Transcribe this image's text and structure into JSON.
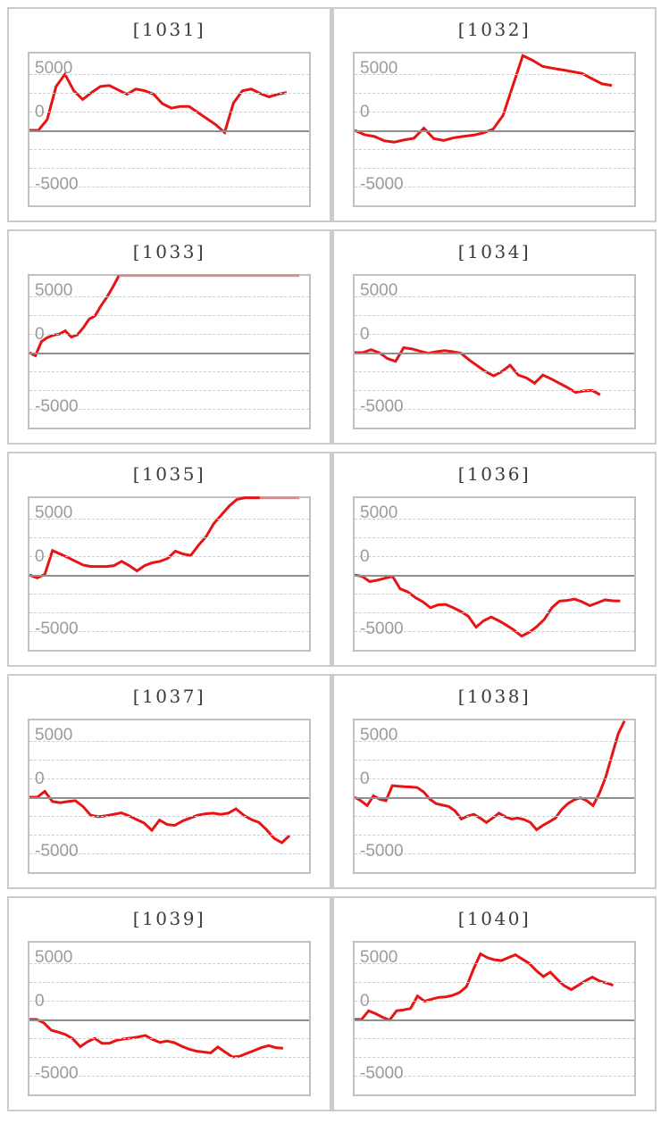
{
  "page": {
    "background": "#ffffff",
    "rows": 5,
    "cols": 2
  },
  "styles": {
    "line_color": "#e81414",
    "cap_color": "#d68f8f",
    "grid_color": "#cecece",
    "zero_line_color": "#8f8f8f",
    "plot_border_color": "#c0c0c0",
    "panel_border_color": "#cbcbcb",
    "title_color": "#3a3a3a",
    "tick_label_color": "#9b9b9b"
  },
  "axis": {
    "y_top": 10260,
    "y_bottom": -10010,
    "grid_values": [
      7500,
      5000,
      2500,
      0,
      -2500,
      -5000,
      -7500
    ],
    "zero_value": 0,
    "tick_labels": [
      "5000",
      "0",
      "-5000"
    ],
    "tick_label_positions_pct": [
      10.1,
      39.0,
      86.4
    ],
    "grid_step": 2500
  },
  "chart_data": [
    {
      "type": "line",
      "title": "[1031]",
      "x_span": 0.92,
      "ylim": [
        -10010,
        10260
      ],
      "values": [
        0,
        0,
        1450,
        5870,
        7500,
        5290,
        4130,
        5060,
        5870,
        5990,
        5410,
        4830,
        5520,
        5290,
        4830,
        3550,
        2970,
        3200,
        3200,
        2380,
        1570,
        760,
        -290,
        3660,
        5290,
        5520,
        4940,
        4480,
        4830,
        5060
      ]
    },
    {
      "type": "line",
      "title": "[1032]",
      "x_span": 0.92,
      "ylim": [
        -10010,
        10260
      ],
      "values": [
        0,
        -580,
        -810,
        -1390,
        -1570,
        -1280,
        -1050,
        300,
        -1100,
        -1350,
        -1000,
        -800,
        -640,
        -350,
        170,
        1990,
        6000,
        9980,
        9350,
        8550,
        8300,
        8080,
        7850,
        7600,
        6900,
        6220,
        6000
      ]
    },
    {
      "type": "line",
      "title": "[1033]",
      "x_span": 0.32,
      "ylim": [
        -10010,
        10260
      ],
      "cap": {
        "from": 0.32,
        "to": 0.965,
        "value": 10300
      },
      "values": [
        0,
        -400,
        1480,
        2020,
        2330,
        2490,
        2910,
        2090,
        2370,
        3300,
        4470,
        4930,
        6280,
        7440,
        8800,
        10300
      ]
    },
    {
      "type": "line",
      "title": "[1034]",
      "x_span": 0.878,
      "ylim": [
        -10010,
        10260
      ],
      "values": [
        0,
        0,
        390,
        0,
        -780,
        -1160,
        660,
        500,
        190,
        -80,
        120,
        270,
        120,
        -80,
        -970,
        -1750,
        -2520,
        -3100,
        -2520,
        -1670,
        -2990,
        -3370,
        -4070,
        -2990,
        -3490,
        -4070,
        -4650,
        -5310,
        -5120,
        -5040,
        -5620
      ]
    },
    {
      "type": "line",
      "title": "[1035]",
      "x_span": 0.824,
      "ylim": [
        -10010,
        10260
      ],
      "cap": {
        "from": 0.824,
        "to": 0.965,
        "value": 10300
      },
      "values": [
        0,
        -390,
        80,
        3260,
        2790,
        2330,
        1820,
        1320,
        1120,
        1120,
        1120,
        1240,
        1820,
        1240,
        540,
        1240,
        1630,
        1820,
        2210,
        3180,
        2790,
        2600,
        3950,
        5120,
        6860,
        8020,
        9190,
        10080,
        10300,
        10300,
        10300
      ]
    },
    {
      "type": "line",
      "title": "[1036]",
      "x_span": 0.95,
      "ylim": [
        -10010,
        10260
      ],
      "values": [
        0,
        -190,
        -890,
        -700,
        -430,
        -190,
        -1860,
        -2250,
        -3020,
        -3600,
        -4380,
        -3990,
        -3950,
        -4380,
        -4880,
        -5540,
        -6980,
        -6120,
        -5620,
        -6120,
        -6710,
        -7360,
        -8180,
        -7670,
        -6900,
        -5930,
        -4380,
        -3490,
        -3410,
        -3220,
        -3600,
        -4110,
        -3720,
        -3330,
        -3450,
        -3490
      ]
    },
    {
      "type": "line",
      "title": "[1037]",
      "x_span": 0.93,
      "ylim": [
        -10010,
        10260
      ],
      "values": [
        0,
        0,
        775,
        -580,
        -740,
        -580,
        -465,
        -1240,
        -2400,
        -2600,
        -2480,
        -2290,
        -2090,
        -2480,
        -2980,
        -3450,
        -4420,
        -3060,
        -3640,
        -3760,
        -3180,
        -2790,
        -2400,
        -2210,
        -2130,
        -2290,
        -2130,
        -1550,
        -2400,
        -2980,
        -3370,
        -4340,
        -5500,
        -6080,
        -5120
      ]
    },
    {
      "type": "line",
      "title": "[1038]",
      "x_span": 0.965,
      "ylim": [
        -10010,
        10260
      ],
      "values": [
        0,
        -465,
        -1120,
        190,
        -270,
        -465,
        1550,
        1470,
        1400,
        1360,
        1280,
        700,
        -270,
        -850,
        -1050,
        -1240,
        -1820,
        -2910,
        -2520,
        -2290,
        -2790,
        -3370,
        -2790,
        -2130,
        -2600,
        -2910,
        -2790,
        -2980,
        -3370,
        -4340,
        -3760,
        -3290,
        -2790,
        -1630,
        -850,
        -350,
        -80,
        -465,
        -1120,
        500,
        2640,
        5540,
        8450,
        10190
      ]
    },
    {
      "type": "line",
      "title": "[1039]",
      "x_span": 0.907,
      "ylim": [
        -10010,
        10260
      ],
      "values": [
        0,
        0,
        -465,
        -1430,
        -1705,
        -2020,
        -2600,
        -3640,
        -2980,
        -2520,
        -3180,
        -3180,
        -2790,
        -2600,
        -2480,
        -2330,
        -2130,
        -2670,
        -3060,
        -2870,
        -3100,
        -3570,
        -3950,
        -4220,
        -4340,
        -4460,
        -3680,
        -4340,
        -5000,
        -4920,
        -4530,
        -4150,
        -3760,
        -3490,
        -3760,
        -3840
      ]
    },
    {
      "type": "line",
      "title": "[1040]",
      "x_span": 0.925,
      "ylim": [
        -10010,
        10260
      ],
      "values": [
        0,
        0,
        1160,
        775,
        310,
        -80,
        1160,
        1280,
        1470,
        3140,
        2440,
        2710,
        2950,
        3020,
        3220,
        3600,
        4380,
        6710,
        8760,
        8260,
        7980,
        7870,
        8260,
        8640,
        8060,
        7480,
        6510,
        5740,
        6320,
        5350,
        4500,
        3990,
        4570,
        5160,
        5660,
        5160,
        4880,
        4570
      ]
    }
  ]
}
